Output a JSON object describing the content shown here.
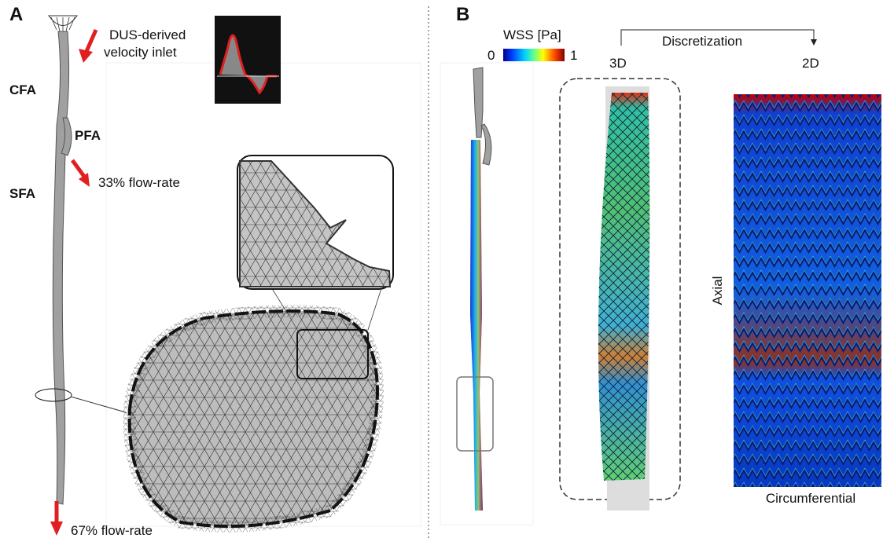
{
  "panel_a": {
    "label": "A",
    "inlet_label": [
      "DUS-derived",
      "velocity inlet"
    ],
    "vessels": {
      "cfa": "CFA",
      "pfa": "PFA",
      "sfa": "SFA"
    },
    "outlets": [
      "33% flow-rate",
      "67% flow-rate"
    ]
  },
  "panel_b": {
    "label": "B",
    "colorbar": {
      "title": "WSS [Pa]",
      "min": 0,
      "max": 1
    },
    "discretization": "Discretization",
    "from": "3D",
    "to": "2D",
    "axes": {
      "y": "Axial",
      "x": "Circumferential"
    }
  }
}
